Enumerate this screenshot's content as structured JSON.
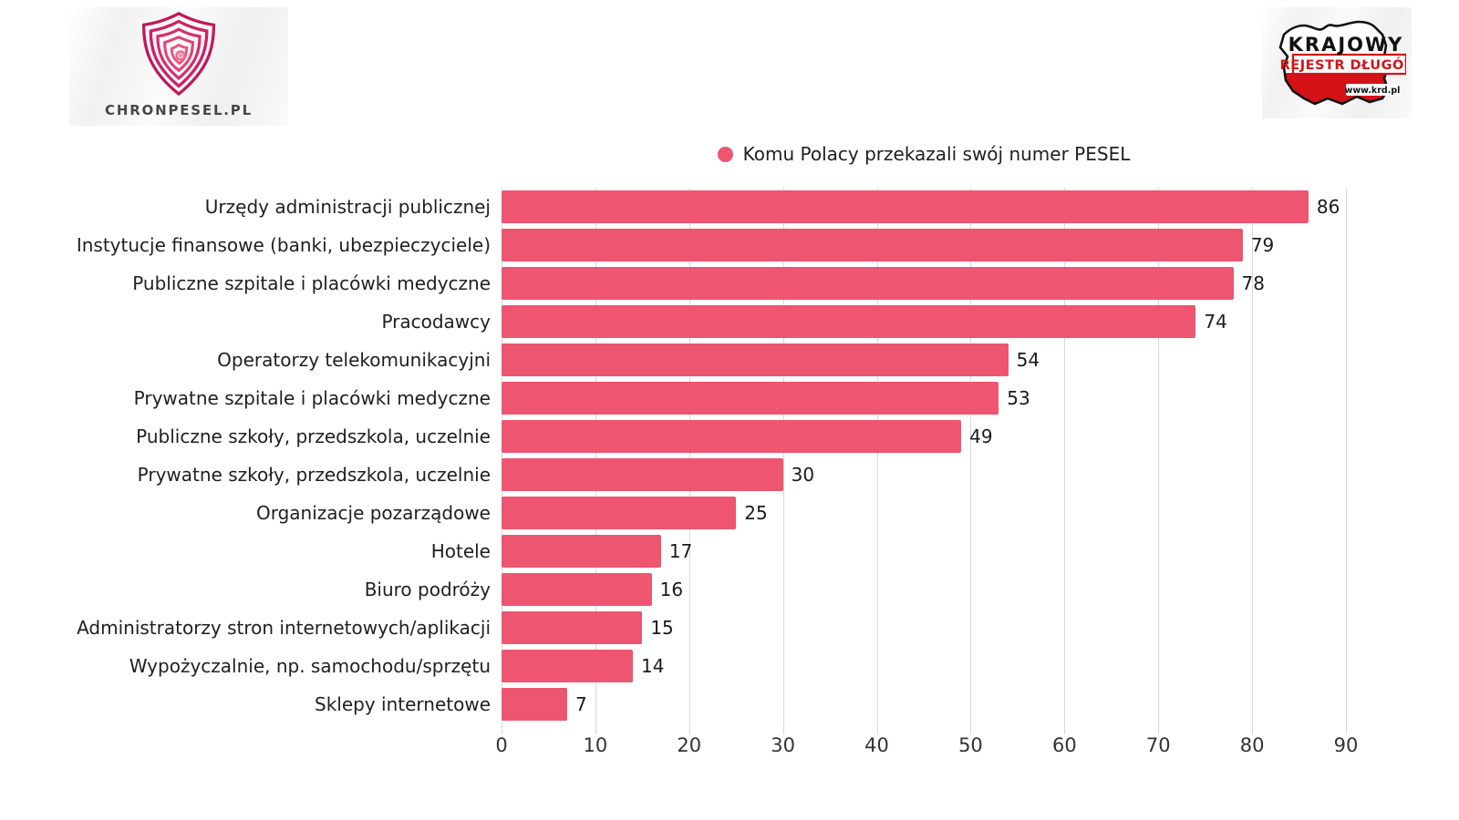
{
  "header": {
    "left_logo": {
      "brand": "CHRONPESEL.PL",
      "icon": "fingerprint-shield-icon"
    },
    "right_logo": {
      "line1": "KRAJOWY",
      "line2": "REJESTR DŁUGÓW",
      "url": "www.krd.pl",
      "icon": "poland-map-icon"
    }
  },
  "legend": {
    "label": "Komu Polacy przekazali swój numer PESEL",
    "marker_color": "#ed5570"
  },
  "chart_data": {
    "type": "bar",
    "orientation": "horizontal",
    "title": "Komu Polacy przekazali swój numer PESEL",
    "categories": [
      "Urzędy administracji publicznej",
      "Instytucje finansowe (banki, ubezpieczyciele)",
      "Publiczne szpitale i placówki medyczne",
      "Pracodawcy",
      "Operatorzy telekomunikacyjni",
      "Prywatne szpitale i placówki medyczne",
      "Publiczne szkoły, przedszkola, uczelnie",
      "Prywatne szkoły, przedszkola, uczelnie",
      "Organizacje pozarządowe",
      "Hotele",
      "Biuro podróży",
      "Administratorzy stron internetowych/aplikacji",
      "Wypożyczalnie, np. samochodu/sprzętu",
      "Sklepy internetowe"
    ],
    "values": [
      86,
      79,
      78,
      74,
      54,
      53,
      49,
      30,
      25,
      17,
      16,
      15,
      14,
      7
    ],
    "xlim": [
      0,
      90
    ],
    "x_ticks": [
      0,
      10,
      20,
      30,
      40,
      50,
      60,
      70,
      80,
      90
    ],
    "bar_color": "#ed5570",
    "grid": true,
    "legend_position": "top-center",
    "value_labels": "outside-end"
  },
  "colors": {
    "bar": "#ed5570",
    "grid": "#d9d9d9",
    "text": "#1f1f1f",
    "axis_text": "#333333",
    "krd_red": "#d41317",
    "brand_gray": "#474747"
  }
}
